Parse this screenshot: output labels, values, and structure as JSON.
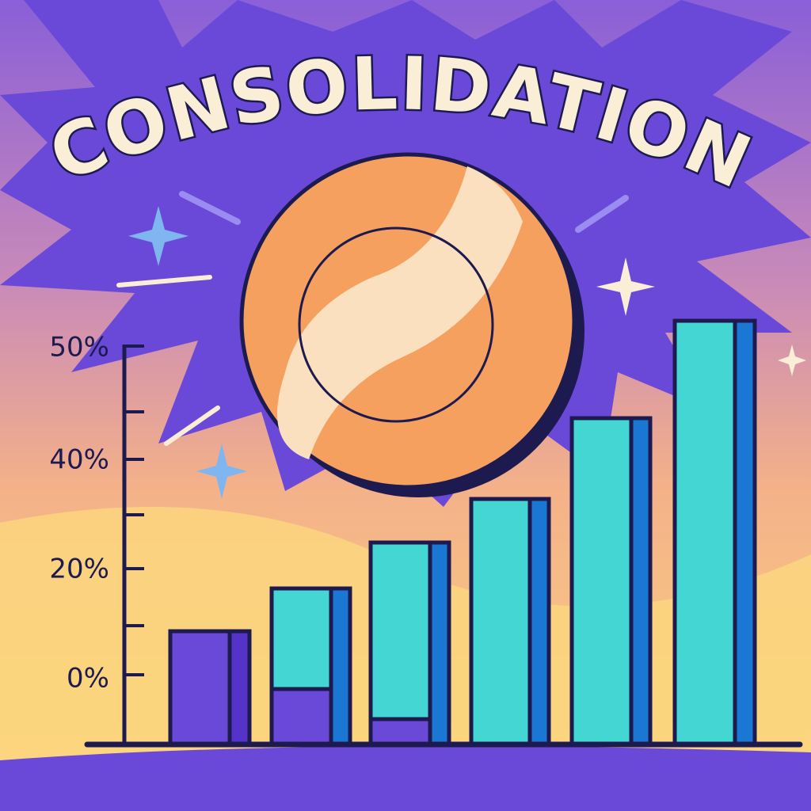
{
  "title": "CONSOLIDATION",
  "axis_labels": [
    "50%",
    "40%",
    "20%",
    "0%"
  ]
}
